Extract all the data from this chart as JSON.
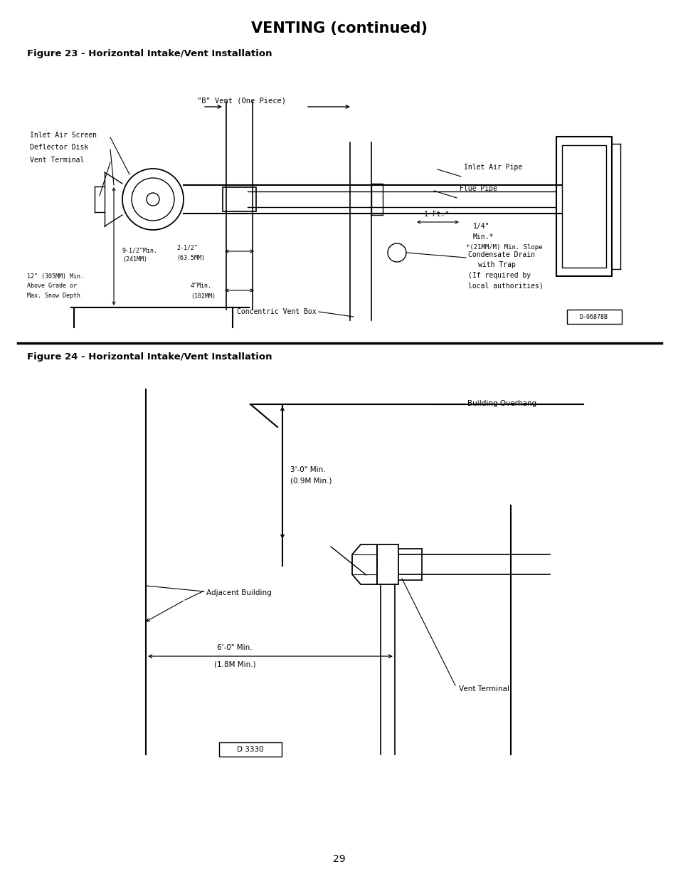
{
  "title": "VENTING (continued)",
  "fig23_label": "Figure 23 - Horizontal Intake/Vent Installation",
  "fig24_label": "Figure 24 - Horizontal Intake/Vent Installation",
  "page_number": "29",
  "background_color": "#ffffff",
  "line_color": "#000000",
  "title_fontsize": 15,
  "fig_label_fontsize": 9.5,
  "annotation_fontsize": 7.5,
  "mono_fontsize": 7.5
}
